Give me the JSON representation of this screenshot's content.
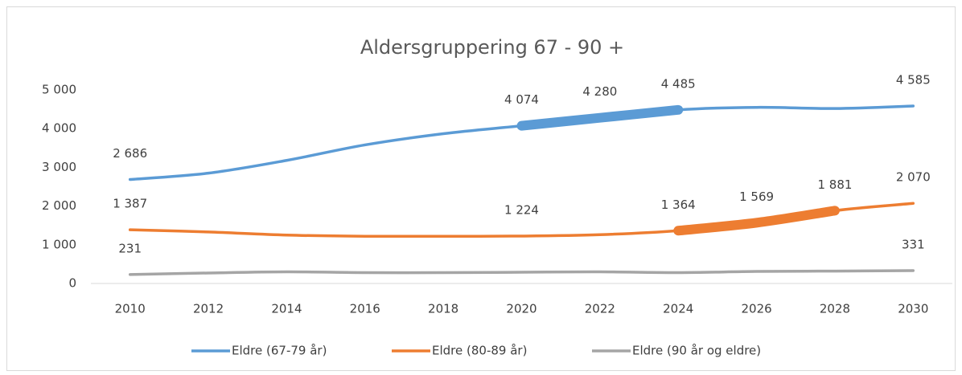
{
  "chart_data": {
    "type": "line",
    "title": "Aldersgruppering 67 - 90 +",
    "categories": [
      "2010",
      "2012",
      "2014",
      "2016",
      "2018",
      "2020",
      "2022",
      "2024",
      "2026",
      "2028",
      "2030"
    ],
    "series": [
      {
        "name": "Eldre (67-79 år)",
        "color": "#5b9bd5",
        "values": [
          2686,
          2850,
          3180,
          3580,
          3870,
          4074,
          4280,
          4485,
          4550,
          4520,
          4585
        ],
        "value_labels": [
          "2 686",
          null,
          null,
          null,
          null,
          "4 074",
          "4 280",
          "4 485",
          null,
          null,
          "4 585"
        ],
        "emphasis": [
          "2020",
          "2024"
        ]
      },
      {
        "name": "Eldre (80-89 år)",
        "color": "#ed7d31",
        "values": [
          1387,
          1330,
          1250,
          1220,
          1220,
          1224,
          1260,
          1364,
          1569,
          1881,
          2070
        ],
        "value_labels": [
          "1 387",
          null,
          null,
          null,
          null,
          "1 224",
          null,
          "1 364",
          "1 569",
          "1 881",
          "2 070"
        ],
        "emphasis": [
          "2024",
          "2028"
        ]
      },
      {
        "name": "Eldre (90 år og eldre)",
        "color": "#a5a5a5",
        "values": [
          231,
          270,
          300,
          280,
          280,
          290,
          300,
          280,
          310,
          320,
          331
        ],
        "value_labels": [
          "231",
          null,
          null,
          null,
          null,
          null,
          null,
          null,
          null,
          null,
          "331"
        ]
      }
    ],
    "ylim": [
      0,
      5000
    ],
    "yticks": [
      {
        "value": 0,
        "label": "0"
      },
      {
        "value": 1000,
        "label": "1 000"
      },
      {
        "value": 2000,
        "label": "2 000"
      },
      {
        "value": 3000,
        "label": "3 000"
      },
      {
        "value": 4000,
        "label": "4 000"
      },
      {
        "value": 5000,
        "label": "5 000"
      }
    ],
    "grid": false,
    "legend": "bottom"
  }
}
